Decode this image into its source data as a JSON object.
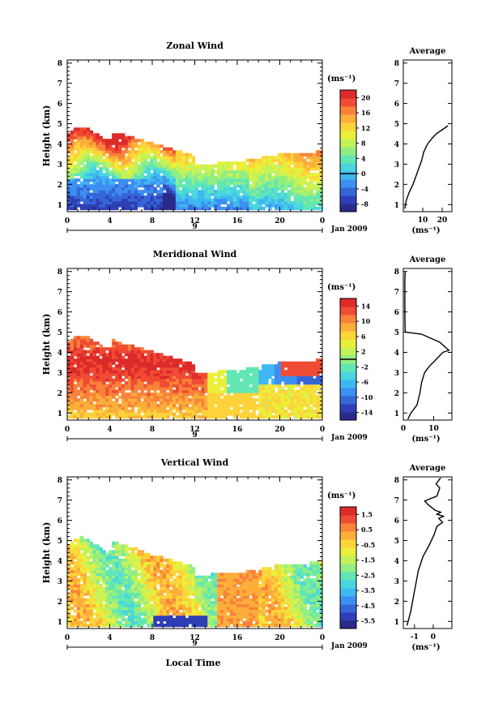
{
  "figure": {
    "date_label": "Jan 2009",
    "day_label": "9",
    "xlabel": "Local Time",
    "ylabel": "Height (km)",
    "unit_label": "(ms⁻¹)",
    "avg_title": "Average",
    "colormap": [
      "#2b2a8a",
      "#2f3fb4",
      "#3567d8",
      "#3d8ff0",
      "#3fb7f2",
      "#49d6df",
      "#62e6b5",
      "#93ee82",
      "#c4f25a",
      "#eaef3a",
      "#fdd33a",
      "#fcae3a",
      "#f8823a",
      "#f04b33",
      "#dd2a2a"
    ]
  },
  "chart_data": [
    {
      "type": "heatmap",
      "title": "Zonal Wind",
      "x_ticks": [
        "0",
        "4",
        "8",
        "12",
        "16",
        "20",
        "0"
      ],
      "y_ticks": [
        "1",
        "2",
        "3",
        "4",
        "5",
        "6",
        "7",
        "8"
      ],
      "xlim": [
        0,
        24
      ],
      "ylim": [
        0.65,
        8.15
      ],
      "colorbar": {
        "ticks": [
          "20",
          "16",
          "12",
          "8",
          "4",
          "0",
          "-4",
          "-8"
        ],
        "range": [
          -10,
          22
        ],
        "contour_value": 0
      },
      "average_profile": {
        "x_ticks": [
          "10",
          "20"
        ],
        "xlim": [
          0,
          25
        ],
        "points": [
          [
            0.8,
            0.8
          ],
          [
            1.5,
            1.2
          ],
          [
            3.0,
            1.6
          ],
          [
            5.0,
            2.0
          ],
          [
            6.5,
            2.4
          ],
          [
            8.0,
            2.8
          ],
          [
            9.5,
            3.2
          ],
          [
            10.5,
            3.6
          ],
          [
            12.5,
            4.0
          ],
          [
            15.0,
            4.3
          ],
          [
            17.0,
            4.5
          ],
          [
            20.0,
            4.7
          ],
          [
            23.0,
            4.9
          ]
        ]
      }
    },
    {
      "type": "heatmap",
      "title": "Meridional Wind",
      "x_ticks": [
        "0",
        "4",
        "8",
        "12",
        "16",
        "20",
        "0"
      ],
      "y_ticks": [
        "1",
        "2",
        "3",
        "4",
        "5",
        "6",
        "7",
        "8"
      ],
      "xlim": [
        0,
        24
      ],
      "ylim": [
        0.65,
        8.15
      ],
      "colorbar": {
        "ticks": [
          "14",
          "10",
          "6",
          "2",
          "-2",
          "-6",
          "-10",
          "-14"
        ],
        "range": [
          -16,
          16
        ],
        "contour_value": 0
      },
      "average_profile": {
        "x_ticks": [
          "0",
          "10"
        ],
        "xlim": [
          0,
          16
        ],
        "points": [
          [
            1.5,
            0.7
          ],
          [
            2.5,
            1.0
          ],
          [
            4.5,
            1.4
          ],
          [
            5.5,
            2.0
          ],
          [
            6.0,
            2.5
          ],
          [
            7.0,
            3.0
          ],
          [
            8.5,
            3.3
          ],
          [
            10.5,
            3.6
          ],
          [
            13.0,
            4.0
          ],
          [
            15.0,
            4.1
          ],
          [
            12.0,
            4.5
          ],
          [
            6.0,
            4.9
          ],
          [
            0.6,
            5.0
          ],
          [
            0.5,
            6.0
          ],
          [
            0.5,
            7.5
          ],
          [
            0.6,
            8.0
          ]
        ]
      }
    },
    {
      "type": "heatmap",
      "title": "Vertical Wind",
      "x_ticks": [
        "0",
        "4",
        "8",
        "12",
        "16",
        "20",
        "0"
      ],
      "y_ticks": [
        "1",
        "2",
        "3",
        "4",
        "5",
        "6",
        "7",
        "8"
      ],
      "xlim": [
        0,
        24
      ],
      "ylim": [
        0.65,
        8.15
      ],
      "colorbar": {
        "ticks": [
          "1.5",
          "0.5",
          "-0.5",
          "-1.5",
          "-2.5",
          "-3.5",
          "-4.5",
          "-5.5"
        ],
        "range": [
          -6,
          2
        ],
        "contour_value": null
      },
      "average_profile": {
        "x_ticks": [
          "-1",
          "0"
        ],
        "xlim": [
          -1.6,
          1.0
        ],
        "points": [
          [
            -1.4,
            0.8
          ],
          [
            -1.2,
            1.5
          ],
          [
            -1.0,
            2.5
          ],
          [
            -0.8,
            3.5
          ],
          [
            -0.55,
            4.2
          ],
          [
            -0.2,
            4.8
          ],
          [
            0.05,
            5.3
          ],
          [
            0.2,
            5.7
          ],
          [
            0.5,
            5.9
          ],
          [
            0.3,
            6.1
          ],
          [
            0.55,
            6.2
          ],
          [
            0.2,
            6.3
          ],
          [
            0.4,
            6.4
          ],
          [
            0.1,
            6.5
          ],
          [
            -0.3,
            6.8
          ],
          [
            -0.45,
            6.95
          ],
          [
            -0.2,
            7.05
          ],
          [
            0.2,
            7.2
          ],
          [
            0.35,
            7.6
          ],
          [
            0.15,
            7.8
          ],
          [
            0.4,
            8.1
          ]
        ]
      }
    }
  ]
}
